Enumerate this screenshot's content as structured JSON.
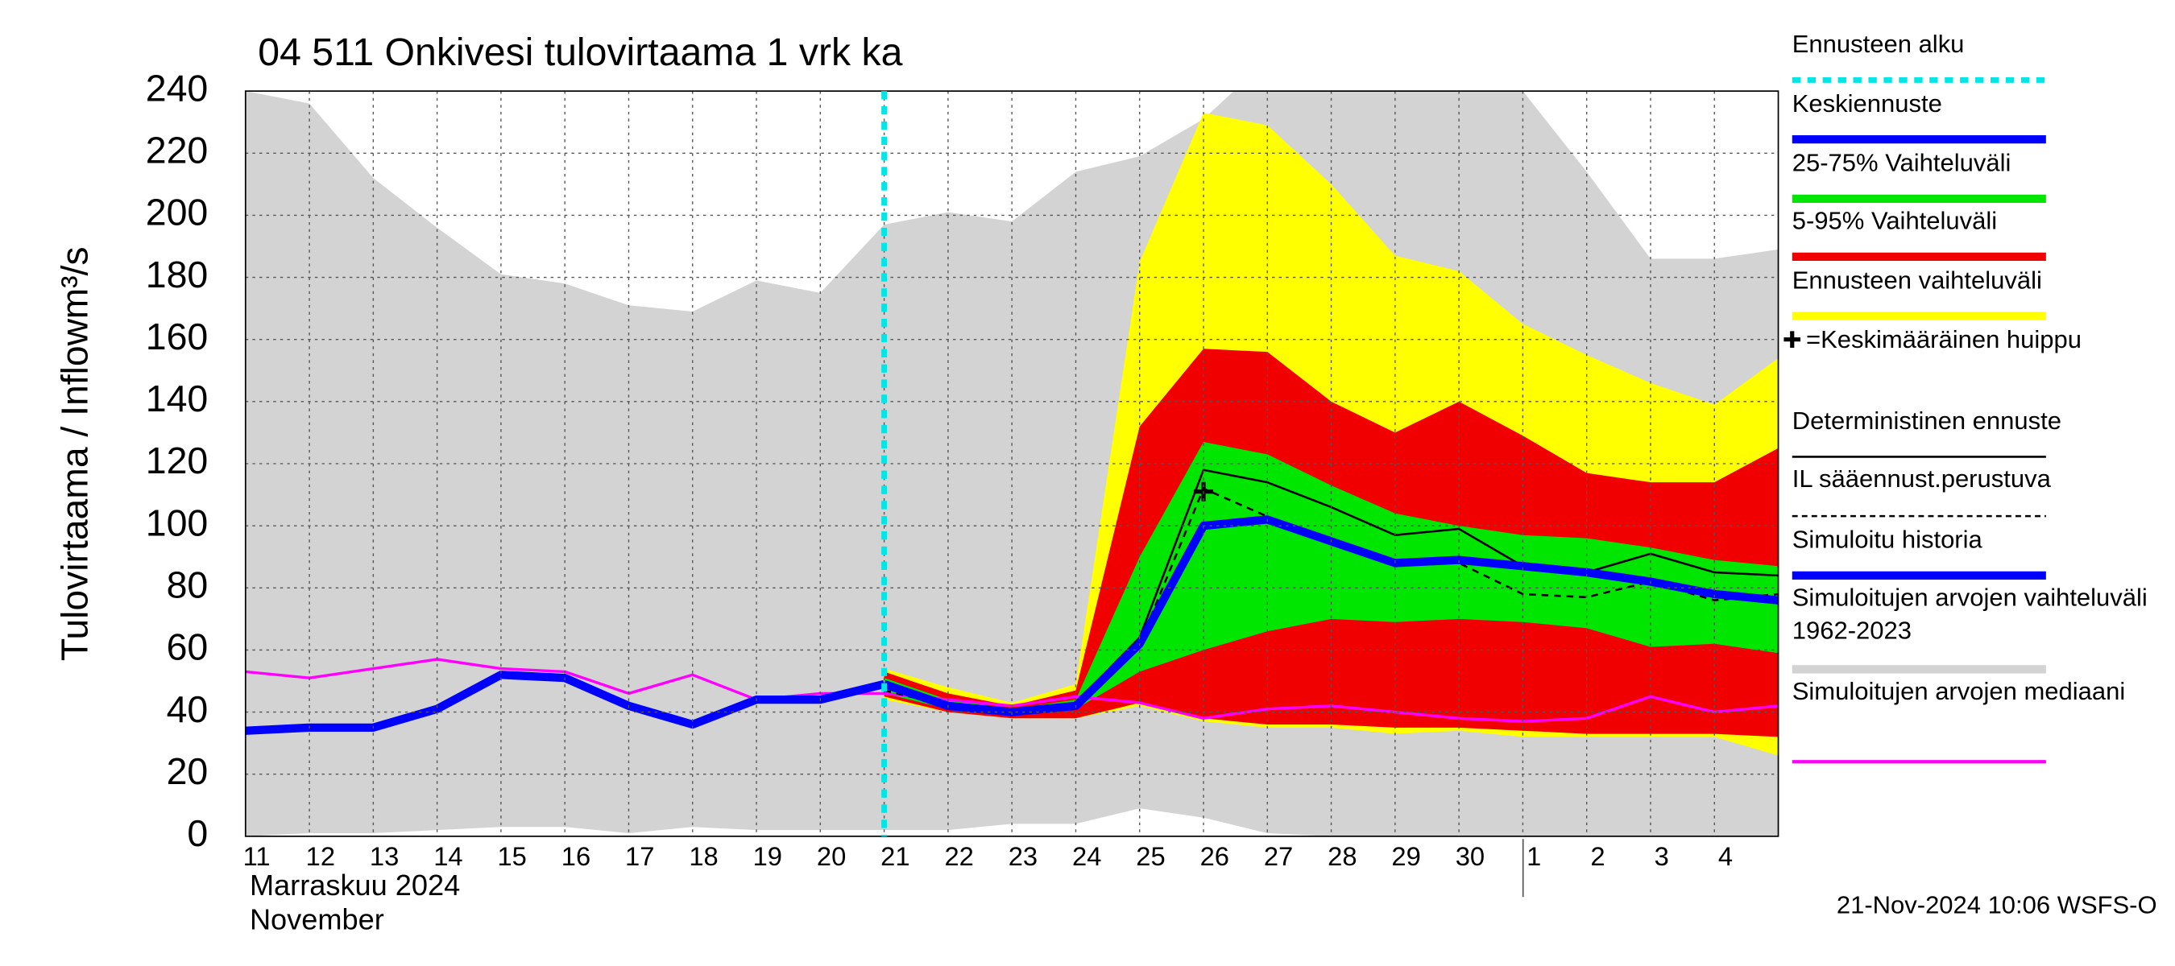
{
  "chart_data": {
    "type": "hydrograph",
    "title": "04 511 Onkivesi tulovirtaama 1 vrk ka",
    "y_label": "Tulovirtaama / Inflow",
    "y_unit": "m³/s",
    "x_label": "Marraskuu 2024",
    "x_label_en": "November",
    "timestamp": "21-Nov-2024 10:06 WSFS-O",
    "categories": [
      "11",
      "12",
      "13",
      "14",
      "15",
      "16",
      "17",
      "18",
      "19",
      "20",
      "21",
      "22",
      "23",
      "24",
      "25",
      "26",
      "27",
      "28",
      "29",
      "30",
      "1",
      "2",
      "3",
      "4",
      null
    ],
    "ylim": [
      0,
      240
    ],
    "yticks": [
      0,
      20,
      40,
      60,
      80,
      100,
      120,
      140,
      160,
      180,
      200,
      220,
      240
    ],
    "grid": true,
    "series": [
      {
        "name": "Ennusteen alku",
        "color": "#00e5e5",
        "style": "vline",
        "category": "21"
      },
      {
        "name": "Keskiennuste",
        "color": "#0000ff",
        "style": "line",
        "width": 6,
        "values": [
          null,
          null,
          null,
          null,
          null,
          null,
          null,
          null,
          null,
          null,
          49,
          42,
          40,
          42,
          62,
          100,
          102,
          95,
          88,
          89,
          87,
          85,
          82,
          78,
          76
        ]
      },
      {
        "name": "25-75% Vaihteluväli",
        "color": "#00e600",
        "style": "band",
        "upper": [
          null,
          null,
          null,
          null,
          null,
          null,
          null,
          null,
          null,
          null,
          51,
          44,
          41,
          44,
          90,
          127,
          123,
          113,
          104,
          100,
          97,
          96,
          93,
          89,
          87
        ],
        "lower": [
          null,
          null,
          null,
          null,
          null,
          null,
          null,
          null,
          null,
          null,
          46,
          41,
          39,
          41,
          53,
          60,
          66,
          70,
          69,
          70,
          69,
          67,
          61,
          62,
          59
        ]
      },
      {
        "name": "5-95% Vaihteluväli",
        "color": "#f00000",
        "style": "band",
        "upper": [
          null,
          null,
          null,
          null,
          null,
          null,
          null,
          null,
          null,
          null,
          53,
          46,
          42,
          47,
          132,
          157,
          156,
          140,
          130,
          140,
          129,
          117,
          114,
          114,
          125
        ],
        "lower": [
          null,
          null,
          null,
          null,
          null,
          null,
          null,
          null,
          null,
          null,
          45,
          40,
          38,
          38,
          43,
          38,
          36,
          36,
          35,
          35,
          34,
          33,
          33,
          33,
          32
        ]
      },
      {
        "name": "Ennusteen vaihteluväli",
        "color": "#ffff00",
        "style": "band",
        "upper": [
          null,
          null,
          null,
          null,
          null,
          null,
          null,
          null,
          null,
          null,
          54,
          48,
          43,
          49,
          185,
          233,
          229,
          210,
          187,
          182,
          165,
          155,
          146,
          139,
          154
        ],
        "lower": [
          null,
          null,
          null,
          null,
          null,
          null,
          null,
          null,
          null,
          null,
          44,
          40,
          38,
          38,
          42,
          37,
          35,
          35,
          33,
          34,
          32,
          32,
          32,
          32,
          26
        ]
      },
      {
        "name": "=Keskimääräinen huippu",
        "color": "#000000",
        "style": "marker",
        "category": "26",
        "value": 111
      },
      {
        "name": "Deterministinen ennuste",
        "color": "#000000",
        "style": "line",
        "width": 1.5,
        "values": [
          null,
          null,
          null,
          null,
          null,
          null,
          null,
          null,
          null,
          null,
          48,
          42,
          40,
          43,
          64,
          118,
          114,
          106,
          97,
          99,
          87,
          85,
          91,
          85,
          84
        ]
      },
      {
        "name": "IL sääennust.perustuva",
        "color": "#000000",
        "style": "dashed",
        "width": 1.5,
        "values": [
          null,
          null,
          null,
          null,
          null,
          null,
          null,
          null,
          null,
          null,
          47,
          42,
          40,
          42,
          62,
          112,
          103,
          95,
          88,
          88,
          78,
          77,
          82,
          76,
          78
        ]
      },
      {
        "name": "Simuloitu historia",
        "color": "#0000ff",
        "style": "line",
        "width": 6,
        "values": [
          34,
          35,
          35,
          41,
          52,
          51,
          42,
          36,
          44,
          44,
          49,
          null,
          null,
          null,
          null,
          null,
          null,
          null,
          null,
          null,
          null,
          null,
          null,
          null,
          null
        ]
      },
      {
        "name": "Simuloitujen arvojen vaihteluväli 1962-2023",
        "color": "#d3d3d3",
        "style": "band",
        "upper": [
          240,
          236,
          212,
          196,
          181,
          178,
          171,
          169,
          179,
          175,
          197,
          201,
          198,
          214,
          219,
          231,
          250,
          250,
          250,
          250,
          240,
          214,
          186,
          186,
          189
        ],
        "lower": [
          0,
          1,
          1,
          2,
          3,
          3,
          1,
          3,
          2,
          2,
          2,
          2,
          4,
          4,
          9,
          6,
          1,
          0,
          0,
          0,
          0,
          0,
          0,
          0,
          0
        ]
      },
      {
        "name": "Simuloitujen arvojen mediaani",
        "color": "#ff00ff",
        "style": "line",
        "width": 2,
        "values": [
          53,
          51,
          54,
          57,
          54,
          53,
          46,
          52,
          44,
          46,
          46,
          44,
          42,
          45,
          43,
          38,
          41,
          42,
          40,
          38,
          37,
          38,
          45,
          40,
          42
        ]
      }
    ]
  }
}
